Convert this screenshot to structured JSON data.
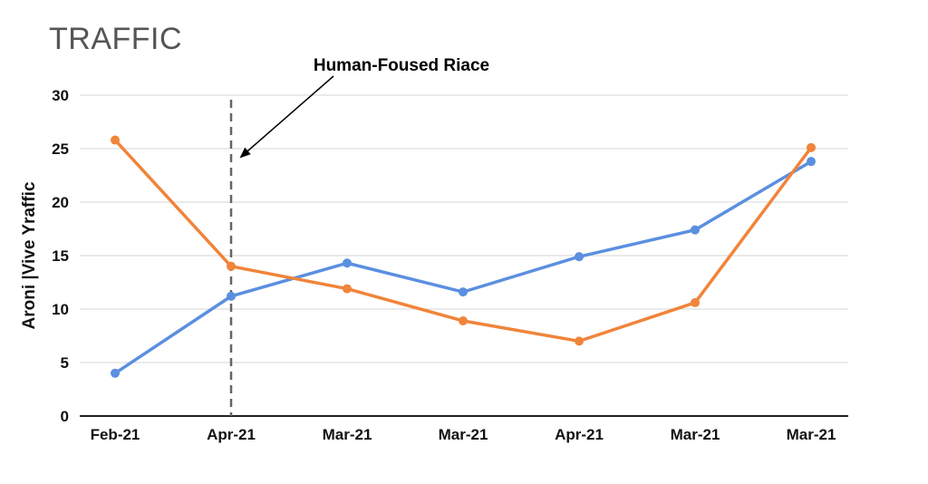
{
  "chart_data": {
    "type": "line",
    "title": "TRAFFIC",
    "ylabel": "Aroni |Vive Yraffic",
    "xlabel": "",
    "categories": [
      "Feb-21",
      "Apr-21",
      "Mar-21",
      "Mar-21",
      "Apr-21",
      "Mar-21",
      "Mar-21"
    ],
    "ylim": [
      0,
      30
    ],
    "yticks": [
      0,
      5,
      10,
      15,
      20,
      25,
      30
    ],
    "grid": true,
    "legend": "none",
    "series": [
      {
        "color": "#5b8fe0",
        "values": [
          4,
          11.2,
          14.3,
          11.6,
          14.9,
          17.4,
          23.8
        ]
      },
      {
        "color": "#f0843a",
        "values": [
          25.8,
          14,
          11.9,
          8.9,
          7,
          10.6,
          25.1
        ]
      }
    ],
    "annotations": [
      {
        "text": "Human-Foused Riace",
        "x_category_index": 1,
        "style": "dashed-vertical-line-with-arrow"
      }
    ]
  }
}
